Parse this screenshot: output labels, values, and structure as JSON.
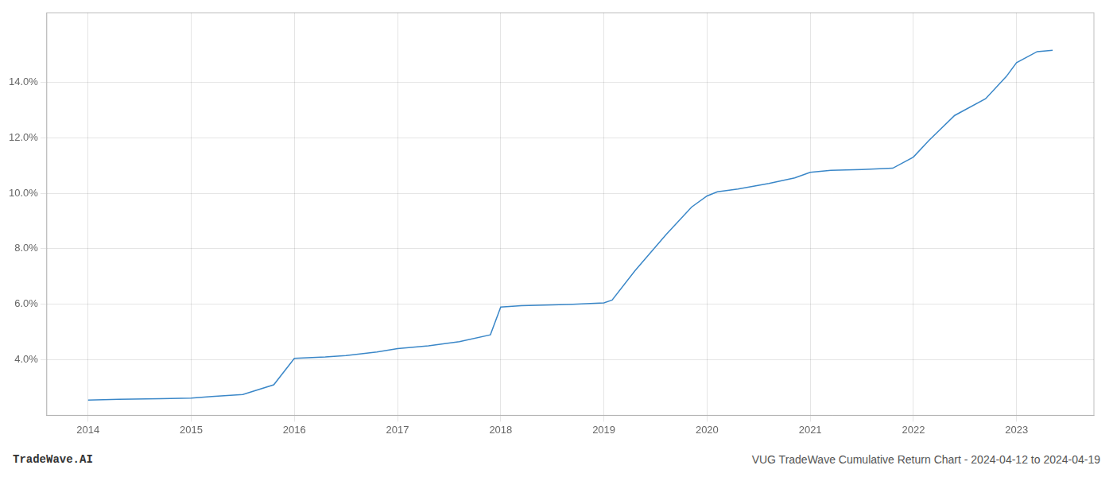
{
  "chart_data": {
    "type": "line",
    "title": "VUG TradeWave Cumulative Return Chart - 2024-04-12 to 2024-04-19",
    "annotations": [
      "TradeWave.AI"
    ],
    "x": [
      2014.0,
      2014.3,
      2014.7,
      2015.0,
      2015.2,
      2015.5,
      2015.8,
      2016.0,
      2016.3,
      2016.5,
      2016.8,
      2017.0,
      2017.3,
      2017.6,
      2017.9,
      2018.0,
      2018.2,
      2018.5,
      2018.7,
      2019.0,
      2019.08,
      2019.3,
      2019.6,
      2019.85,
      2020.0,
      2020.1,
      2020.3,
      2020.6,
      2020.85,
      2021.0,
      2021.2,
      2021.5,
      2021.8,
      2022.0,
      2022.15,
      2022.4,
      2022.7,
      2022.9,
      2023.0,
      2023.2,
      2023.35
    ],
    "values": [
      2.55,
      2.58,
      2.6,
      2.62,
      2.68,
      2.75,
      3.1,
      4.05,
      4.1,
      4.15,
      4.28,
      4.4,
      4.5,
      4.65,
      4.9,
      5.9,
      5.95,
      5.98,
      6.0,
      6.05,
      6.15,
      7.2,
      8.5,
      9.5,
      9.9,
      10.05,
      10.15,
      10.35,
      10.55,
      10.75,
      10.82,
      10.85,
      10.9,
      11.3,
      11.9,
      12.8,
      13.4,
      14.2,
      14.7,
      15.1,
      15.15
    ],
    "color": "#3a87c8",
    "xlim": [
      2013.6,
      2023.75
    ],
    "ylim": [
      2.0,
      16.5
    ],
    "xticks": [
      2014,
      2015,
      2016,
      2017,
      2018,
      2019,
      2020,
      2021,
      2022,
      2023
    ],
    "yticks": [
      {
        "value": 4.0,
        "label": "4.0%"
      },
      {
        "value": 6.0,
        "label": "6.0%"
      },
      {
        "value": 8.0,
        "label": "8.0%"
      },
      {
        "value": 10.0,
        "label": "10.0%"
      },
      {
        "value": 12.0,
        "label": "12.0%"
      },
      {
        "value": 14.0,
        "label": "14.0%"
      }
    ],
    "grid": true
  }
}
